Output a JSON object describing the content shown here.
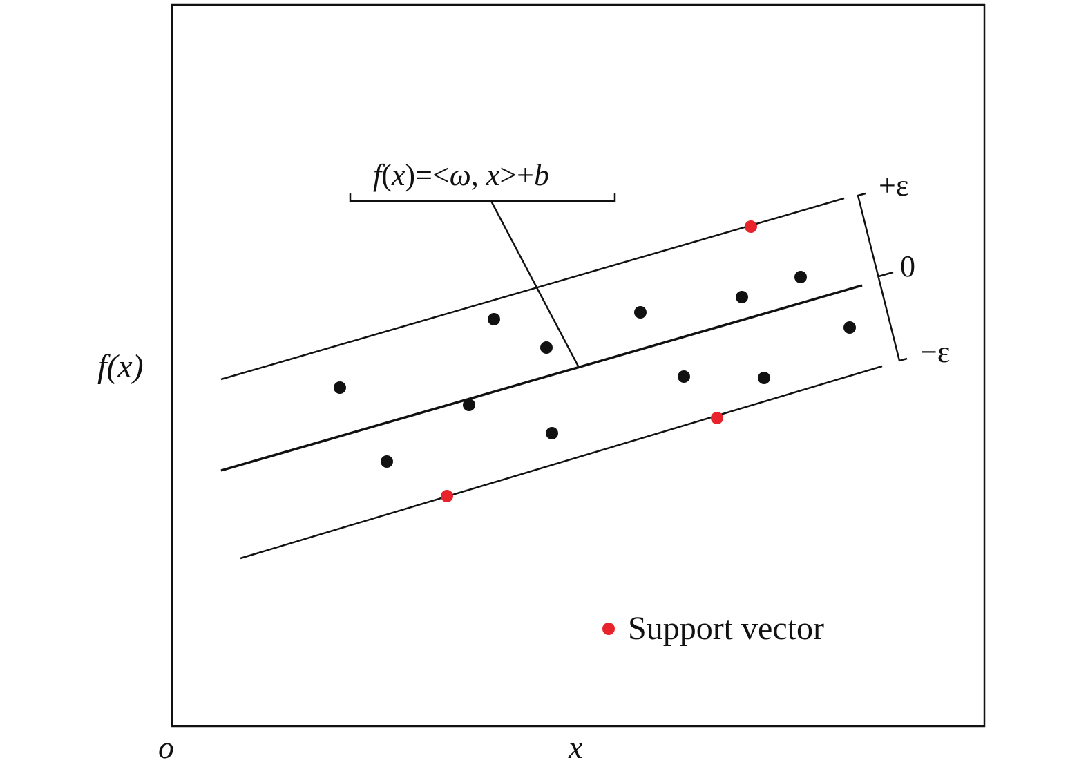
{
  "labels": {
    "y_axis": "f(x)",
    "x_axis": "x",
    "origin": "o",
    "equation": {
      "f": "f",
      "open": "(",
      "x1": "x",
      "mid": ")=<",
      "omega": "ω",
      "comma": ", ",
      "x2": "x",
      "tail": ">+",
      "b": "b"
    },
    "plus_eps": "+ε",
    "zero": "0",
    "minus_eps": "−ε",
    "legend": "Support vector"
  },
  "colors": {
    "line": "#111111",
    "point": "#111111",
    "support_vector": "#e8232b"
  }
}
